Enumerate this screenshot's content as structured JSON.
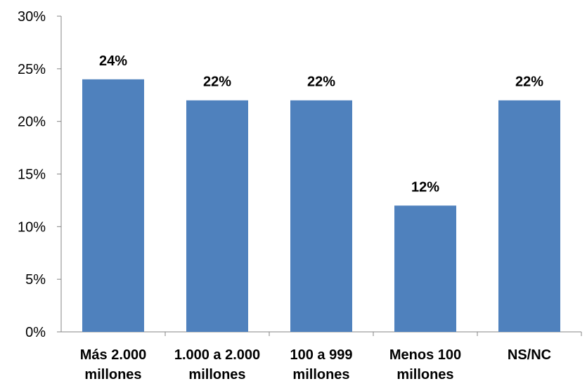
{
  "chart_data": {
    "type": "bar",
    "categories": [
      [
        "Más 2.000",
        "millones"
      ],
      [
        "1.000 a 2.000",
        "millones"
      ],
      [
        "100 a 999",
        "millones"
      ],
      [
        "Menos 100",
        "millones"
      ],
      [
        "NS/NC"
      ]
    ],
    "values": [
      24,
      22,
      22,
      12,
      22
    ],
    "data_labels": [
      "24%",
      "22%",
      "22%",
      "12%",
      "22%"
    ],
    "y_ticks": [
      0,
      5,
      10,
      15,
      20,
      25,
      30
    ],
    "y_tick_labels": [
      "0%",
      "5%",
      "10%",
      "15%",
      "20%",
      "25%",
      "30%"
    ],
    "ylim": [
      0,
      30
    ],
    "grid": false,
    "legend": "none",
    "colors": {
      "bar": "#4F81BD",
      "axis": "#868686"
    }
  }
}
